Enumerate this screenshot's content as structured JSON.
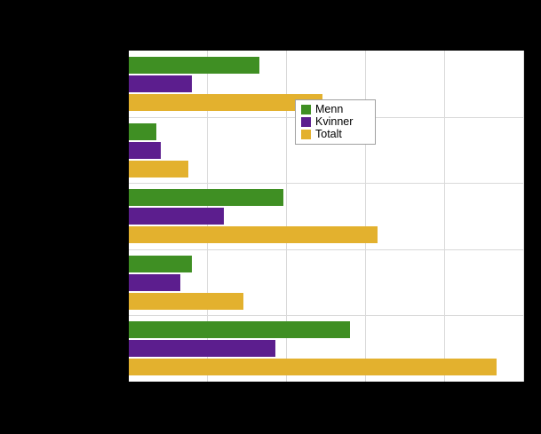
{
  "figure": {
    "background": "#000000",
    "plot_background": "#ffffff",
    "gridline_color": "#d9d9d9",
    "legend_border_color": "#a0a0a0",
    "note": "Chart title, category labels and axis tick labels are not visible in the screenshot (rendered black on the black background); only the plot area, bars and legend are visible."
  },
  "chart_data": {
    "type": "bar",
    "orientation": "horizontal",
    "title": "",
    "xlabel": "",
    "ylabel": "",
    "categories": [
      "",
      "",
      "",
      "",
      ""
    ],
    "series": [
      {
        "name": "Menn",
        "color": "#3F8F23",
        "values": [
          16.5,
          3.5,
          19.5,
          8.0,
          28.0
        ]
      },
      {
        "name": "Kvinner",
        "color": "#5C1E8E",
        "values": [
          8.0,
          4.0,
          12.0,
          6.5,
          18.5
        ]
      },
      {
        "name": "Totalt",
        "color": "#E3B12E",
        "values": [
          24.5,
          7.5,
          31.5,
          14.5,
          46.5
        ]
      }
    ],
    "xlim": [
      0,
      50
    ],
    "grid_interval": 10,
    "grid": true,
    "legend_position": "right-inside",
    "legend_entries": [
      "Menn",
      "Kvinner",
      "Totalt"
    ]
  }
}
